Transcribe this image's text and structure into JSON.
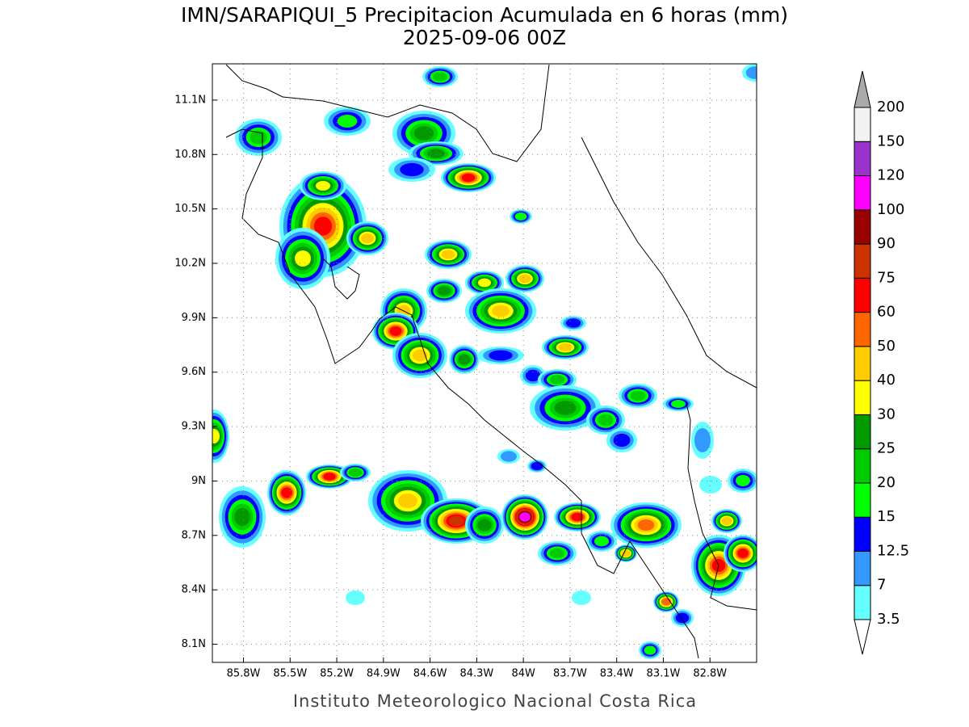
{
  "chart_data": {
    "type": "map",
    "title": "IMN/SARAPIQUI_5 Precipitacion Acumulada en 6 horas (mm)",
    "subtitle": "2025-09-06 00Z",
    "footer": "Instituto Meteorologico Nacional Costa Rica",
    "xlim": [
      -86,
      -82.5
    ],
    "ylim": [
      8,
      11.3
    ],
    "grid": true,
    "xticks": [
      {
        "value": -85.8,
        "label": "85.8W"
      },
      {
        "value": -85.5,
        "label": "85.5W"
      },
      {
        "value": -85.2,
        "label": "85.2W"
      },
      {
        "value": -84.9,
        "label": "84.9W"
      },
      {
        "value": -84.6,
        "label": "84.6W"
      },
      {
        "value": -84.3,
        "label": "84.3W"
      },
      {
        "value": -84,
        "label": "84W"
      },
      {
        "value": -83.7,
        "label": "83.7W"
      },
      {
        "value": -83.4,
        "label": "83.4W"
      },
      {
        "value": -83.1,
        "label": "83.1W"
      },
      {
        "value": -82.8,
        "label": "82.8W"
      }
    ],
    "yticks": [
      {
        "value": 8.1,
        "label": "8.1N"
      },
      {
        "value": 8.4,
        "label": "8.4N"
      },
      {
        "value": 8.7,
        "label": "8.7N"
      },
      {
        "value": 9,
        "label": "9N"
      },
      {
        "value": 9.3,
        "label": "9.3N"
      },
      {
        "value": 9.6,
        "label": "9.6N"
      },
      {
        "value": 9.9,
        "label": "9.9N"
      },
      {
        "value": 10.2,
        "label": "10.2N"
      },
      {
        "value": 10.5,
        "label": "10.5N"
      },
      {
        "value": 10.8,
        "label": "10.8N"
      },
      {
        "value": 11.1,
        "label": "11.1N"
      }
    ],
    "colorbar": {
      "levels": [
        3.5,
        7,
        12.5,
        15,
        20,
        25,
        30,
        40,
        50,
        60,
        75,
        90,
        100,
        120,
        150,
        200
      ],
      "colors": [
        "#ffffff",
        "#66ffff",
        "#3399ff",
        "#0000ff",
        "#00ff00",
        "#00cc00",
        "#009900",
        "#ffff00",
        "#ffcc00",
        "#ff6600",
        "#ff0000",
        "#cc3300",
        "#990000",
        "#ff00ff",
        "#9933cc",
        "#f2f2f2",
        "#aaaaaa"
      ]
    }
  }
}
